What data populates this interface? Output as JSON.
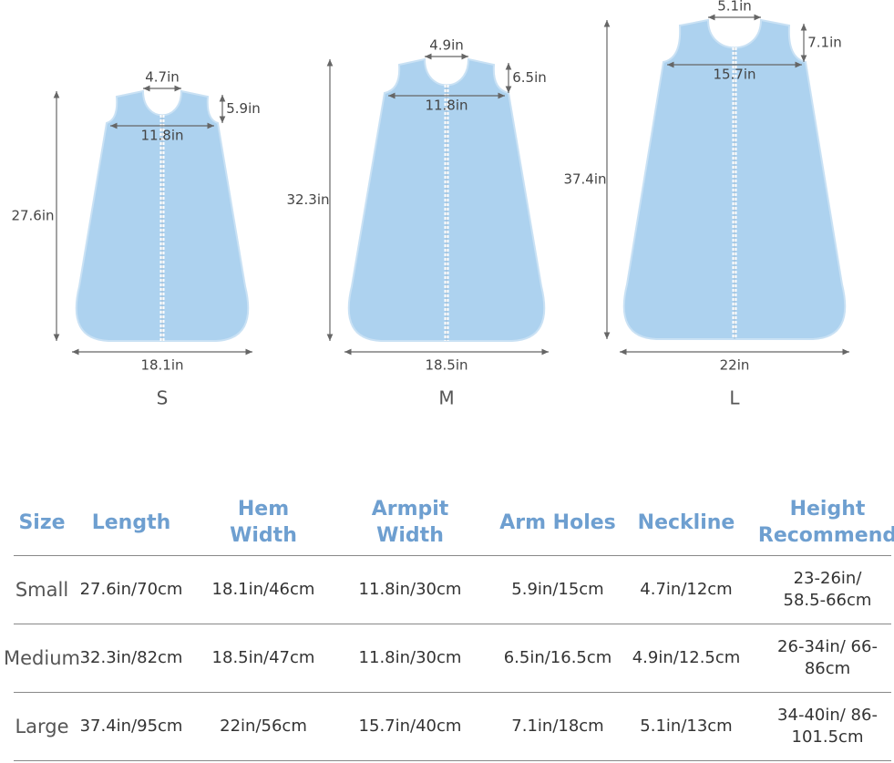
{
  "sizes": [
    {
      "label": "S",
      "neckline": "4.7in",
      "arm_hole": "5.9in",
      "armpit": "11.8in",
      "length": "27.6in",
      "hem": "18.1in"
    },
    {
      "label": "M",
      "neckline": "4.9in",
      "arm_hole": "6.5in",
      "armpit": "11.8in",
      "length": "32.3in",
      "hem": "18.5in"
    },
    {
      "label": "L",
      "neckline": "5.1in",
      "arm_hole": "7.1in",
      "armpit": "15.7in",
      "length": "37.4in",
      "hem": "22in"
    }
  ],
  "table": {
    "header": [
      "Size",
      "Length",
      "Hem Width",
      "Armpit Width",
      "Arm Holes",
      "Neckline",
      "Height Recommend"
    ],
    "rows": [
      [
        "Small",
        "27.6in/70cm",
        "18.1in/46cm",
        "11.8in/30cm",
        "5.9in/15cm",
        "4.7in/12cm",
        "23-26in/ 58.5-66cm"
      ],
      [
        "Medium",
        "32.3in/82cm",
        "18.5in/47cm",
        "11.8in/30cm",
        "6.5in/16.5cm",
        "4.9in/12.5cm",
        "26-34in/ 66-86cm"
      ],
      [
        "Large",
        "37.4in/95cm",
        "22in/56cm",
        "15.7in/40cm",
        "7.1in/18cm",
        "5.1in/13cm",
        "34-40in/ 86-101.5cm"
      ]
    ]
  }
}
